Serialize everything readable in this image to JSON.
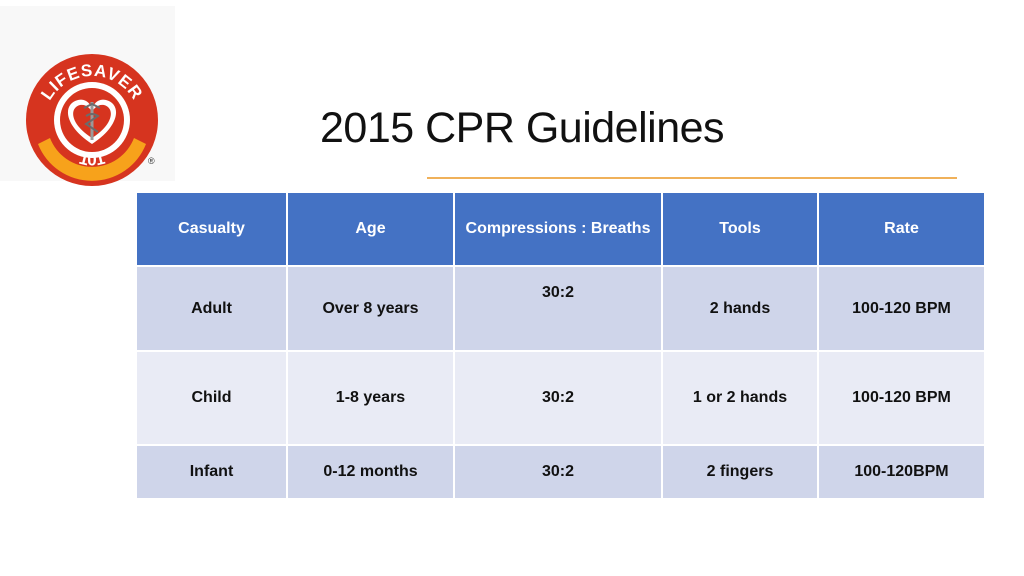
{
  "logo": {
    "text_top": "LIFESAVER",
    "text_bottom": "101",
    "registered": "®"
  },
  "title": "2015 CPR Guidelines",
  "colors": {
    "header": "#4472c4",
    "row_dark": "#cfd5ea",
    "row_light": "#e9ebf5",
    "rule": "#f0b15a",
    "logo_red": "#d6341f",
    "logo_orange": "#f7a21b"
  },
  "table": {
    "headers": [
      "Casualty",
      "Age",
      "Compressions : Breaths",
      "Tools",
      "Rate"
    ],
    "rows": [
      [
        "Adult",
        "Over 8 years",
        "30:2",
        "2 hands",
        "100-120 BPM"
      ],
      [
        "Child",
        "1-8 years",
        "30:2",
        "1 or 2 hands",
        "100-120 BPM"
      ],
      [
        "Infant",
        "0-12 months",
        "30:2",
        "2 fingers",
        "100-120BPM"
      ]
    ]
  }
}
